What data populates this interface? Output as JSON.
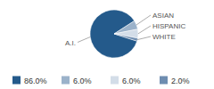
{
  "chart_data": {
    "type": "pie",
    "categories": [
      "A.I.",
      "ASIAN",
      "HISPANIC",
      "WHITE"
    ],
    "values": [
      86,
      6,
      6,
      2
    ],
    "value_labels": [
      "86.0%",
      "6.0%",
      "6.0%",
      "2.0%"
    ],
    "colors": [
      "#245a8b",
      "#9bb2ca",
      "#d3dde8",
      "#6e8db0"
    ],
    "legend": "bottom"
  }
}
